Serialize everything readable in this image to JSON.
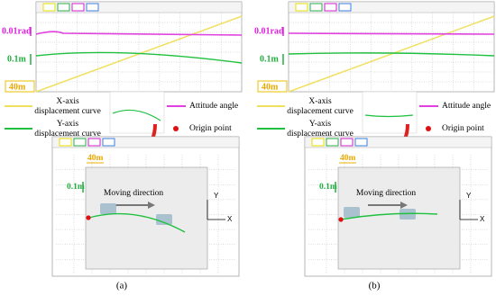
{
  "panels": [
    {
      "caption": "(a)",
      "scope_labels": {
        "attitude": "0.01rad",
        "y": "0.1m",
        "x": "40m"
      },
      "legend": {
        "x_curve": [
          "X-axis",
          "displacement curve"
        ],
        "y_curve": [
          "Y-axis",
          "displacement curve"
        ],
        "attitude": "Attitude angle",
        "origin": "Origin point"
      },
      "plane": {
        "scale_x": "40m",
        "scale_y": "0.1m",
        "direction": "Moving direction",
        "axis_y": "Y",
        "axis_x": "X"
      }
    },
    {
      "caption": "(b)",
      "scope_labels": {
        "attitude": "0.01rad",
        "y": "0.1m",
        "x": "40m"
      },
      "legend": {
        "x_curve": [
          "X-axis",
          "displacement curve"
        ],
        "y_curve": [
          "Y-axis",
          "displacement curve"
        ],
        "attitude": "Attitude angle",
        "origin": "Origin point"
      },
      "plane": {
        "scale_x": "40m",
        "scale_y": "0.1m",
        "direction": "Moving direction",
        "axis_y": "Y",
        "axis_x": "X"
      }
    }
  ]
}
